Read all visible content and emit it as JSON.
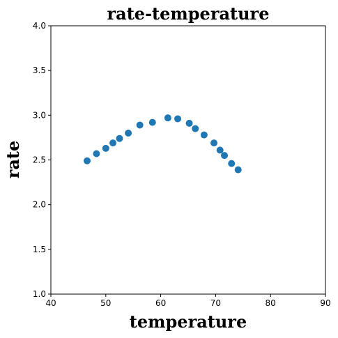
{
  "chart_data": {
    "type": "scatter",
    "title": "rate-temperature",
    "xlabel": "temperature",
    "ylabel": "rate",
    "xlim": [
      40,
      90
    ],
    "ylim": [
      1.0,
      4.0
    ],
    "xticks": [
      "40",
      "50",
      "60",
      "70",
      "80",
      "90"
    ],
    "yticks": [
      "1.0",
      "1.5",
      "2.0",
      "2.5",
      "3.0",
      "3.5",
      "4.0"
    ],
    "grid": false,
    "color": "#1f77b4",
    "points": [
      {
        "x": 46.6,
        "y": 2.49
      },
      {
        "x": 48.3,
        "y": 2.57
      },
      {
        "x": 50.0,
        "y": 2.63
      },
      {
        "x": 51.3,
        "y": 2.69
      },
      {
        "x": 52.5,
        "y": 2.74
      },
      {
        "x": 54.1,
        "y": 2.8
      },
      {
        "x": 56.2,
        "y": 2.89
      },
      {
        "x": 58.5,
        "y": 2.92
      },
      {
        "x": 61.3,
        "y": 2.97
      },
      {
        "x": 63.1,
        "y": 2.96
      },
      {
        "x": 65.2,
        "y": 2.91
      },
      {
        "x": 66.3,
        "y": 2.85
      },
      {
        "x": 67.9,
        "y": 2.78
      },
      {
        "x": 69.7,
        "y": 2.69
      },
      {
        "x": 70.8,
        "y": 2.61
      },
      {
        "x": 71.6,
        "y": 2.55
      },
      {
        "x": 72.9,
        "y": 2.46
      },
      {
        "x": 74.1,
        "y": 2.39
      }
    ]
  }
}
